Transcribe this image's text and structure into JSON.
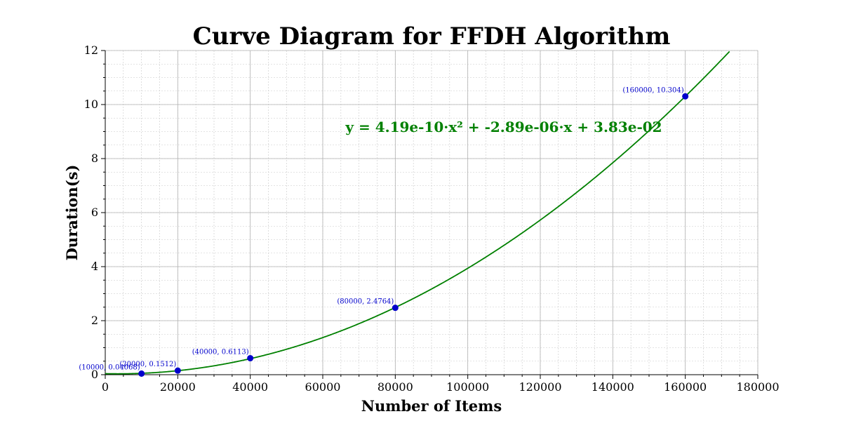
{
  "chart_data": {
    "type": "scatter",
    "title": "Curve Diagram for FFDH Algorithm",
    "xlabel": "Number of Items",
    "ylabel": "Duration(s)",
    "xlim": [
      0,
      180000
    ],
    "ylim": [
      0,
      12
    ],
    "x_ticks": [
      0,
      20000,
      40000,
      60000,
      80000,
      100000,
      120000,
      140000,
      160000,
      180000
    ],
    "y_ticks": [
      0,
      2,
      4,
      6,
      8,
      10,
      12
    ],
    "grid": true,
    "points": [
      {
        "x": 10000,
        "y": 0.04068,
        "label": "(10000, 0.04068)"
      },
      {
        "x": 20000,
        "y": 0.1512,
        "label": "(20000, 0.1512)"
      },
      {
        "x": 40000,
        "y": 0.6113,
        "label": "(40000, 0.6113)"
      },
      {
        "x": 80000,
        "y": 2.4764,
        "label": "(80000, 2.4764)"
      },
      {
        "x": 160000,
        "y": 10.304,
        "label": "(160000, 10.304)"
      }
    ],
    "fit": {
      "coefficients": {
        "a": 4.19e-10,
        "b": -2.89e-06,
        "c": 0.0383
      },
      "equation": "y = 4.19e-10·x² + -2.89e-06·x + 3.83e-02"
    },
    "colors": {
      "points": "#0000cc",
      "curve": "#008000",
      "labels": "#0000cc",
      "equation": "#008000"
    }
  }
}
